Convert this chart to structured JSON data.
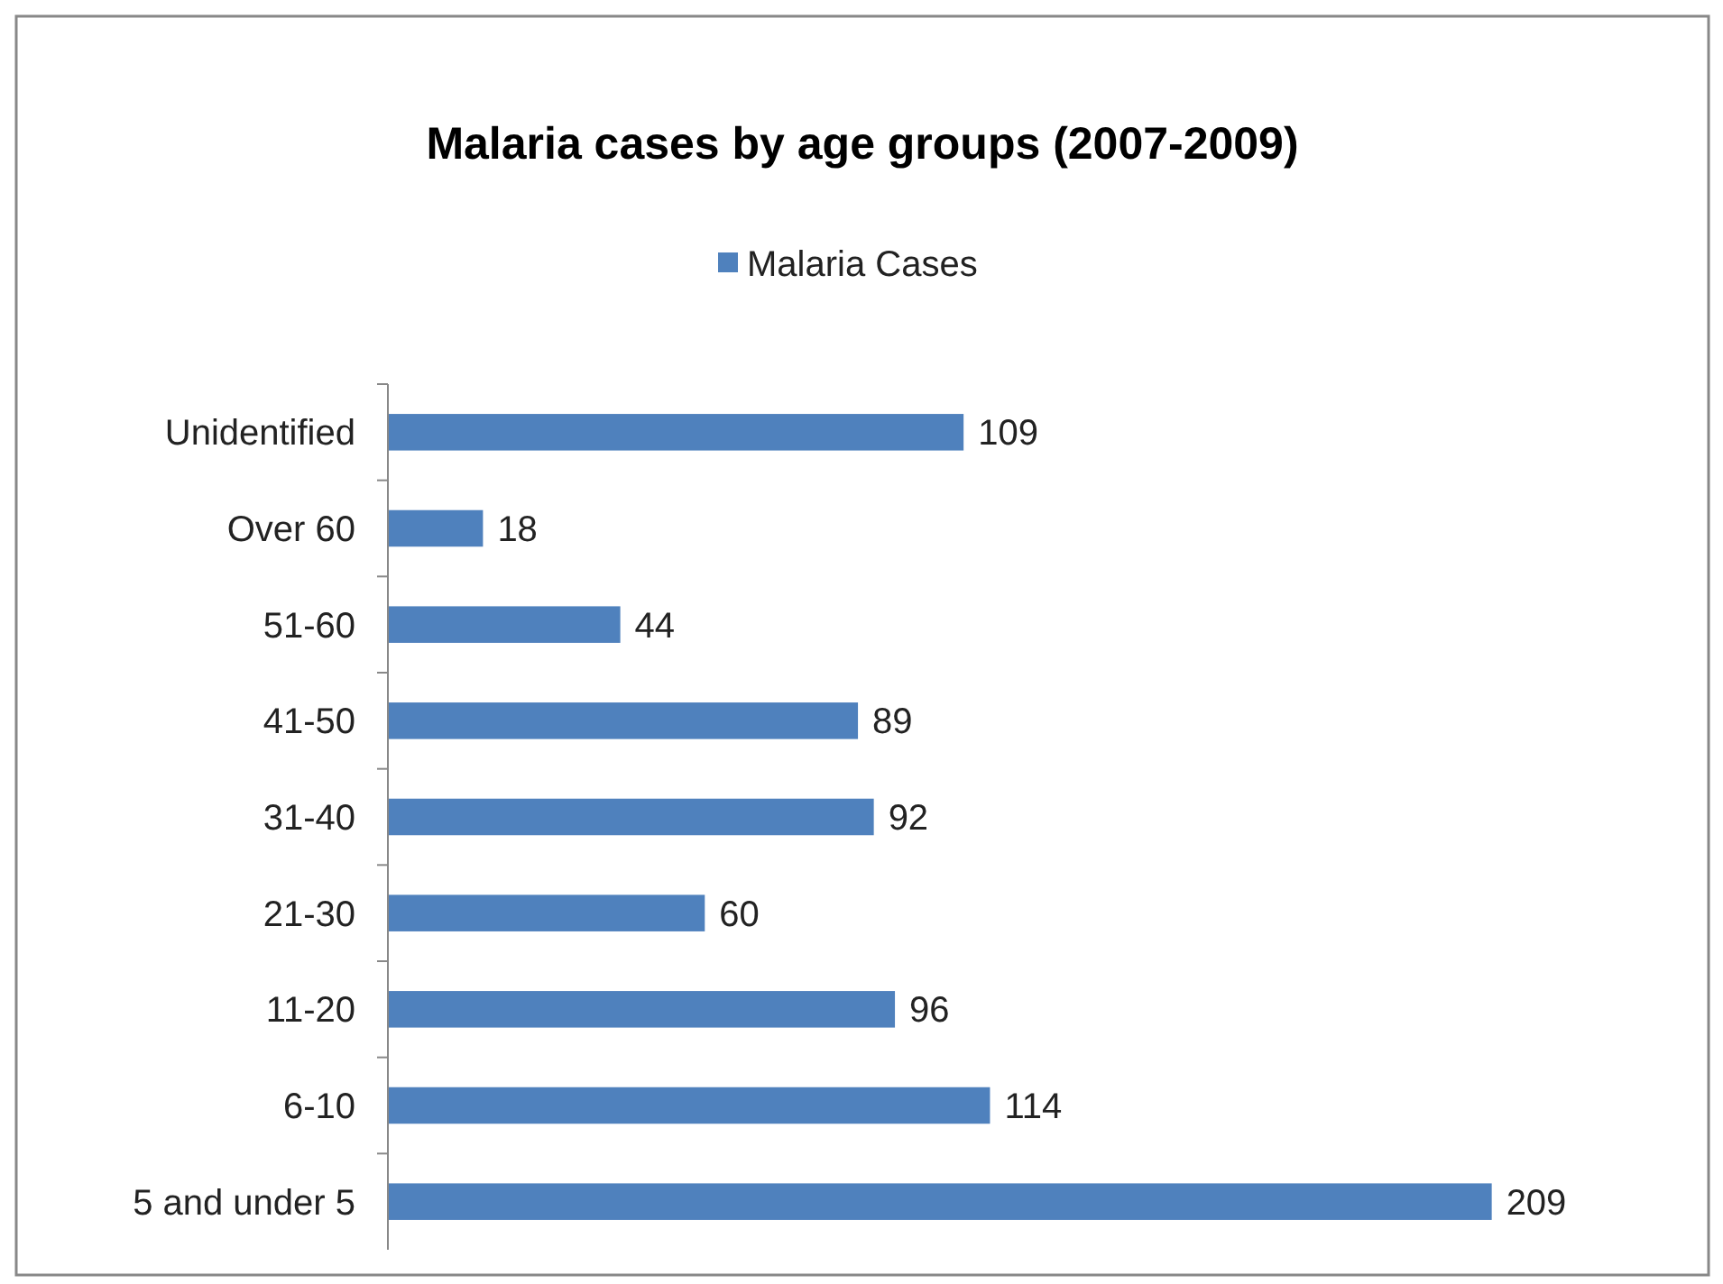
{
  "chart_data": {
    "type": "bar",
    "orientation": "horizontal",
    "title": "Malaria cases by age groups (2007-2009)",
    "categories": [
      "Unidentified",
      "Over 60",
      "51-60",
      "41-50",
      "31-40",
      "21-30",
      "11-20",
      "6-10",
      "5 and under 5"
    ],
    "series": [
      {
        "name": "Malaria Cases",
        "color": "#4f81bd",
        "values": [
          109,
          18,
          44,
          89,
          92,
          60,
          96,
          114,
          209
        ]
      }
    ],
    "data_labels": true,
    "legend": "top",
    "grid": false
  }
}
